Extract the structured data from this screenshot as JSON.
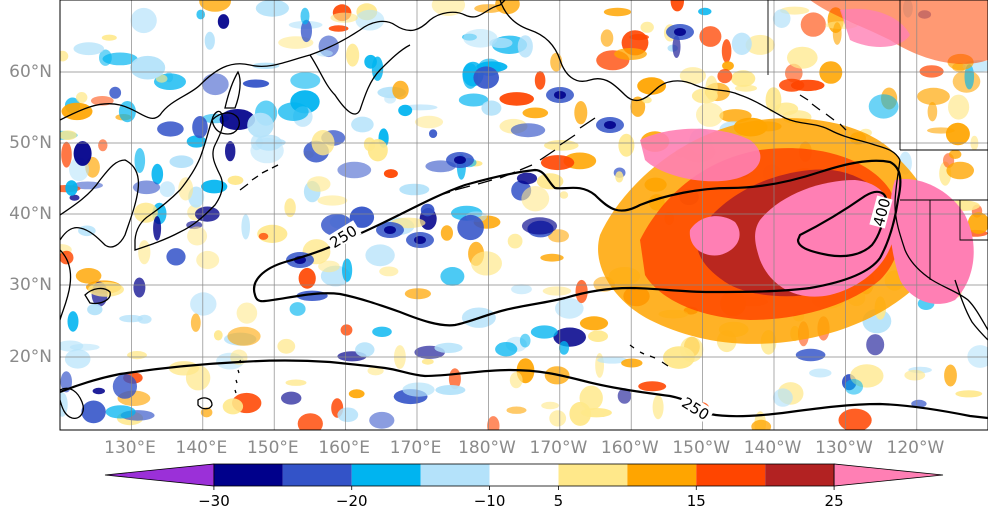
{
  "map": {
    "lat_labels": [
      "60°N",
      "50°N",
      "40°N",
      "30°N",
      "20°N"
    ],
    "lon_labels": [
      "130°E",
      "140°E",
      "150°E",
      "160°E",
      "170°E",
      "180°W",
      "170°W",
      "160°W",
      "150°W",
      "140°W",
      "130°W",
      "120°W"
    ],
    "contour_labels": [
      "250",
      "400",
      "250"
    ]
  },
  "colorbar": {
    "colors": [
      "#9b30d8",
      "#00008b",
      "#3353c8",
      "#00b4f0",
      "#b4e2fa",
      "#ffffff",
      "#ffe88a",
      "#ffa500",
      "#ff4500",
      "#b22222",
      "#ff7fb4"
    ],
    "tick_labels": [
      "−30",
      "−20",
      "−10",
      "5",
      "15",
      "25"
    ]
  },
  "colors": {
    "coast": "#000000",
    "contour": "#000000",
    "grid": "#888888",
    "land_bg": "#ffffff"
  }
}
